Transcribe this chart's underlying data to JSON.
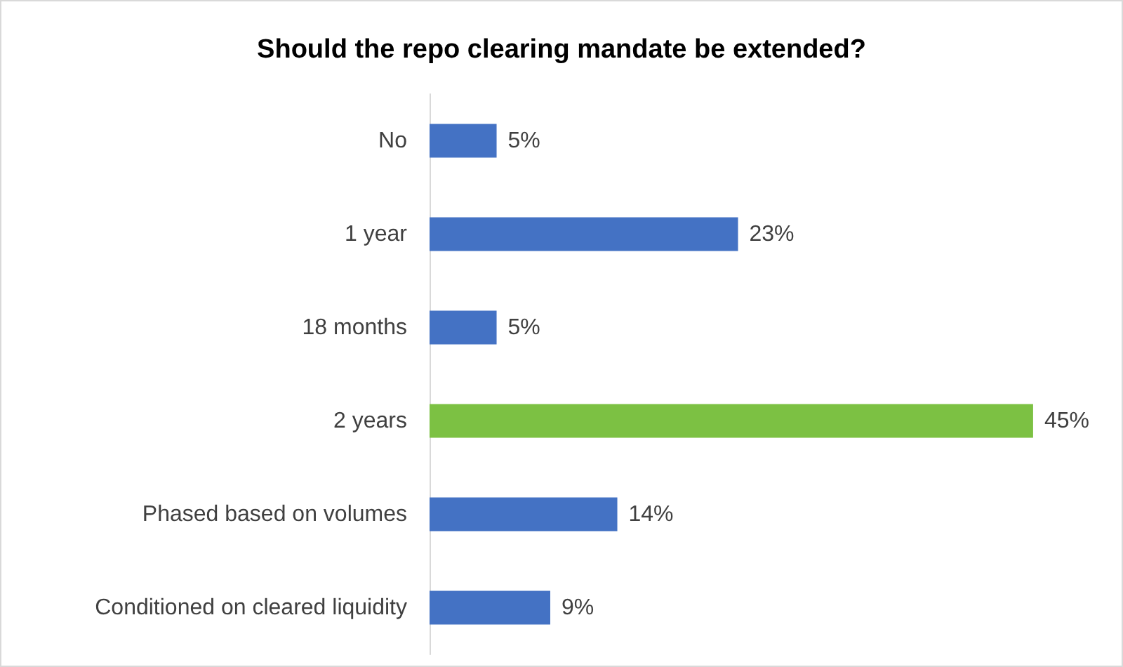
{
  "chart_data": {
    "type": "bar",
    "orientation": "horizontal",
    "title": "Should the repo clearing mandate be extended?",
    "categories": [
      "No",
      "1 year",
      "18 months",
      "2 years",
      "Phased based on volumes",
      "Conditioned on cleared liquidity"
    ],
    "values": [
      5,
      23,
      5,
      45,
      14,
      9
    ],
    "colors": [
      "#4472c4",
      "#4472c4",
      "#4472c4",
      "#7cc143",
      "#4472c4",
      "#4472c4"
    ],
    "value_labels": [
      "5%",
      "23%",
      "5%",
      "45%",
      "14%",
      "9%"
    ],
    "tick_labels": "y"
  }
}
